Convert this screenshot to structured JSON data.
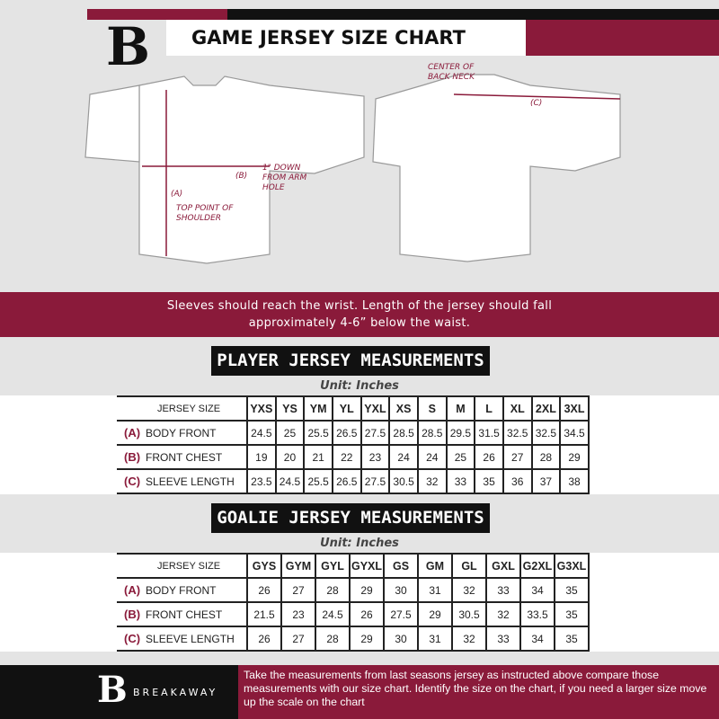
{
  "header": {
    "title": "GAME JERSEY SIZE CHART",
    "logo": "B"
  },
  "diagram": {
    "label_center_back_neck": "CENTER OF BACK NECK",
    "label_c": "(C)",
    "label_b": "(B)",
    "label_arm_hole": "1\" DOWN FROM ARM HOLE",
    "label_a": "(A)",
    "label_shoulder": "TOP POINT OF SHOULDER"
  },
  "banner": {
    "text": "Sleeves should reach the wrist. Length of the jersey should fall approximately 4-6” below the waist."
  },
  "player": {
    "heading": "PLAYER JERSEY MEASUREMENTS",
    "unit": "Unit: Inches",
    "size_label": "JERSEY SIZE",
    "sizes": [
      "YXS",
      "YS",
      "YM",
      "YL",
      "YXL",
      "XS",
      "S",
      "M",
      "L",
      "XL",
      "2XL",
      "3XL"
    ],
    "rows": [
      {
        "key": "(A)",
        "label": "BODY FRONT",
        "values": [
          "24.5",
          "25",
          "25.5",
          "26.5",
          "27.5",
          "28.5",
          "28.5",
          "29.5",
          "31.5",
          "32.5",
          "32.5",
          "34.5"
        ]
      },
      {
        "key": "(B)",
        "label": "FRONT CHEST",
        "values": [
          "19",
          "20",
          "21",
          "22",
          "23",
          "24",
          "24",
          "25",
          "26",
          "27",
          "28",
          "29"
        ]
      },
      {
        "key": "(C)",
        "label": "SLEEVE LENGTH",
        "values": [
          "23.5",
          "24.5",
          "25.5",
          "26.5",
          "27.5",
          "30.5",
          "32",
          "33",
          "35",
          "36",
          "37",
          "38"
        ]
      }
    ]
  },
  "goalie": {
    "heading": "GOALIE JERSEY MEASUREMENTS",
    "unit": "Unit: Inches",
    "size_label": "JERSEY SIZE",
    "sizes": [
      "GYS",
      "GYM",
      "GYL",
      "GYXL",
      "GS",
      "GM",
      "GL",
      "GXL",
      "G2XL",
      "G3XL"
    ],
    "rows": [
      {
        "key": "(A)",
        "label": "BODY FRONT",
        "values": [
          "26",
          "27",
          "28",
          "29",
          "30",
          "31",
          "32",
          "33",
          "34",
          "35"
        ]
      },
      {
        "key": "(B)",
        "label": "FRONT CHEST",
        "values": [
          "21.5",
          "23",
          "24.5",
          "26",
          "27.5",
          "29",
          "30.5",
          "32",
          "33.5",
          "35"
        ]
      },
      {
        "key": "(C)",
        "label": "SLEEVE LENGTH",
        "values": [
          "26",
          "27",
          "28",
          "29",
          "30",
          "31",
          "32",
          "33",
          "34",
          "35"
        ]
      }
    ]
  },
  "footer": {
    "brand": "BREAKAWAY",
    "logo": "B",
    "text": "Take the measurements from last seasons jersey as instructed above compare those measurements  with our size chart. Identify the size on the chart, if you need a larger size move up the scale on the chart"
  },
  "colors": {
    "maroon": "#8a1a3a",
    "black": "#111111",
    "background": "#e4e4e4"
  }
}
